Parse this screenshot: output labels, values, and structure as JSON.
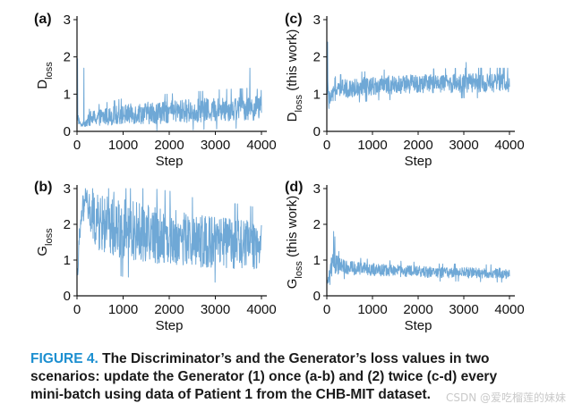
{
  "figure": {
    "caption_label": "FIGURE 4.",
    "caption_text": "The Discriminator’s and the Generator’s loss values in two scenarios: update the Generator (1) once (a-b) and (2) twice (c-d) every mini-batch using data of Patient 1 from the CHB-MIT dataset.",
    "watermark": "CSDN @爱吃榴莲的妹妹"
  },
  "colors": {
    "series": "#6fa8d6",
    "axis": "#111111",
    "caption_label": "#1c8fd0"
  },
  "chart_data": [
    {
      "type": "line",
      "panel_label": "(a)",
      "xlabel": "Step",
      "ylabel_main": "D",
      "ylabel_sub": "loss",
      "ylabel_suffix": "",
      "xlim": [
        0,
        4000
      ],
      "ylim": [
        0,
        3
      ],
      "xticks": [
        0,
        1000,
        2000,
        3000,
        4000
      ],
      "yticks": [
        0,
        1,
        2,
        3
      ],
      "grid": false,
      "series": [
        {
          "x": [
            0,
            20,
            50,
            80,
            120,
            200,
            300,
            500,
            800,
            1000,
            1300,
            1600,
            2000,
            2400,
            2800,
            3200,
            3600,
            3800,
            4000
          ],
          "mean": [
            1.0,
            0.4,
            0.25,
            0.18,
            0.18,
            0.25,
            0.35,
            0.38,
            0.42,
            0.45,
            0.48,
            0.5,
            0.52,
            0.55,
            0.57,
            0.6,
            0.62,
            0.63,
            0.62
          ],
          "spread": [
            0.3,
            0.2,
            0.08,
            0.05,
            0.05,
            0.12,
            0.2,
            0.22,
            0.25,
            0.27,
            0.28,
            0.3,
            0.3,
            0.32,
            0.32,
            0.33,
            0.33,
            0.34,
            0.3
          ],
          "spikes": [
            [
              10,
              1.95
            ],
            [
              150,
              1.7
            ],
            [
              3750,
              1.7
            ]
          ]
        }
      ]
    },
    {
      "type": "line",
      "panel_label": "(b)",
      "xlabel": "Step",
      "ylabel_main": "G",
      "ylabel_sub": "loss",
      "ylabel_suffix": "",
      "xlim": [
        0,
        4000
      ],
      "ylim": [
        0,
        3
      ],
      "xticks": [
        0,
        1000,
        2000,
        3000,
        4000
      ],
      "yticks": [
        0,
        1,
        2,
        3
      ],
      "grid": false,
      "series": [
        {
          "x": [
            0,
            50,
            120,
            200,
            300,
            500,
            1000,
            1500,
            2000,
            2500,
            3000,
            3500,
            4000
          ],
          "mean": [
            0.4,
            1.5,
            2.5,
            2.7,
            2.2,
            2.0,
            1.9,
            1.75,
            1.65,
            1.55,
            1.5,
            1.45,
            1.4
          ],
          "spread": [
            0.1,
            0.4,
            0.3,
            0.25,
            0.7,
            0.8,
            0.85,
            0.8,
            0.8,
            0.75,
            0.7,
            0.7,
            0.65
          ],
          "spikes": [
            [
              220,
              2.95
            ],
            [
              800,
              2.9
            ]
          ]
        }
      ]
    },
    {
      "type": "line",
      "panel_label": "(c)",
      "xlabel": "Step",
      "ylabel_main": "D",
      "ylabel_sub": "loss",
      "ylabel_suffix": " (this work)",
      "xlim": [
        0,
        4000
      ],
      "ylim": [
        0,
        3
      ],
      "xticks": [
        0,
        1000,
        2000,
        3000,
        4000
      ],
      "yticks": [
        0,
        1,
        2,
        3
      ],
      "grid": false,
      "series": [
        {
          "x": [
            0,
            20,
            60,
            100,
            200,
            400,
            800,
            1200,
            1600,
            2000,
            2500,
            3000,
            3500,
            4000
          ],
          "mean": [
            1.6,
            1.1,
            0.85,
            0.9,
            1.1,
            1.15,
            1.2,
            1.25,
            1.25,
            1.28,
            1.28,
            1.3,
            1.3,
            1.3
          ],
          "spread": [
            0.5,
            0.3,
            0.15,
            0.2,
            0.25,
            0.25,
            0.25,
            0.25,
            0.25,
            0.25,
            0.25,
            0.25,
            0.25,
            0.25
          ],
          "spikes": [
            [
              20,
              2.4
            ],
            [
              3050,
              1.85
            ]
          ]
        }
      ]
    },
    {
      "type": "line",
      "panel_label": "(d)",
      "xlabel": "Step",
      "ylabel_main": "G",
      "ylabel_sub": "loss",
      "ylabel_suffix": " (this work)",
      "xlim": [
        0,
        4000
      ],
      "ylim": [
        0,
        3
      ],
      "xticks": [
        0,
        1000,
        2000,
        3000,
        4000
      ],
      "yticks": [
        0,
        1,
        2,
        3
      ],
      "grid": false,
      "series": [
        {
          "x": [
            0,
            40,
            80,
            150,
            250,
            400,
            800,
            1200,
            1600,
            2000,
            2500,
            3000,
            3500,
            4000
          ],
          "mean": [
            0.3,
            0.5,
            0.85,
            0.9,
            0.85,
            0.8,
            0.75,
            0.72,
            0.7,
            0.68,
            0.65,
            0.65,
            0.63,
            0.62
          ],
          "spread": [
            0.1,
            0.2,
            0.3,
            0.35,
            0.25,
            0.2,
            0.18,
            0.17,
            0.17,
            0.16,
            0.15,
            0.15,
            0.15,
            0.15
          ],
          "spikes": [
            [
              150,
              1.8
            ],
            [
              180,
              1.65
            ]
          ]
        }
      ]
    }
  ]
}
